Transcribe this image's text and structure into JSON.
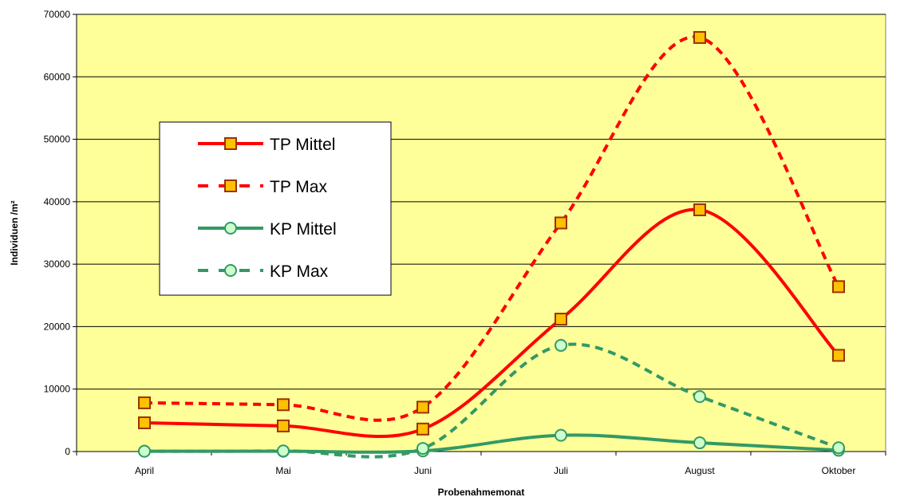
{
  "colors": {
    "plot_background": "#FFFF99",
    "gridline": "#000000",
    "tp_line": "#FF0000",
    "tp_marker_fill": "#FFC000",
    "tp_marker_stroke": "#993300",
    "kp_line": "#339966",
    "kp_marker_fill": "#CCFFCC",
    "kp_marker_stroke": "#339966"
  },
  "chart_data": {
    "type": "line",
    "smoothed": true,
    "categories": [
      "April",
      "Mai",
      "Juni",
      "Juli",
      "August",
      "Oktober"
    ],
    "xlabel": "Probenahmemonat",
    "ylabel": "Individuen /m²",
    "ylim": [
      0,
      70000
    ],
    "yticks": [
      0,
      10000,
      20000,
      30000,
      40000,
      50000,
      60000,
      70000
    ],
    "grid": true,
    "legend_position": "upper-left",
    "series": [
      {
        "name": "TP Mittel",
        "values": [
          4600,
          4100,
          3600,
          21200,
          38700,
          15400
        ],
        "line": "solid",
        "marker": "square",
        "color_key": "tp"
      },
      {
        "name": "TP Max",
        "values": [
          7800,
          7500,
          7100,
          36600,
          66300,
          26400
        ],
        "line": "dashed",
        "marker": "square",
        "color_key": "tp"
      },
      {
        "name": "KP Mittel",
        "values": [
          50,
          50,
          100,
          2600,
          1400,
          200
        ],
        "line": "solid",
        "marker": "circle",
        "color_key": "kp"
      },
      {
        "name": "KP Max",
        "values": [
          50,
          100,
          500,
          17000,
          8800,
          600
        ],
        "line": "dashed",
        "marker": "circle",
        "color_key": "kp"
      }
    ]
  }
}
